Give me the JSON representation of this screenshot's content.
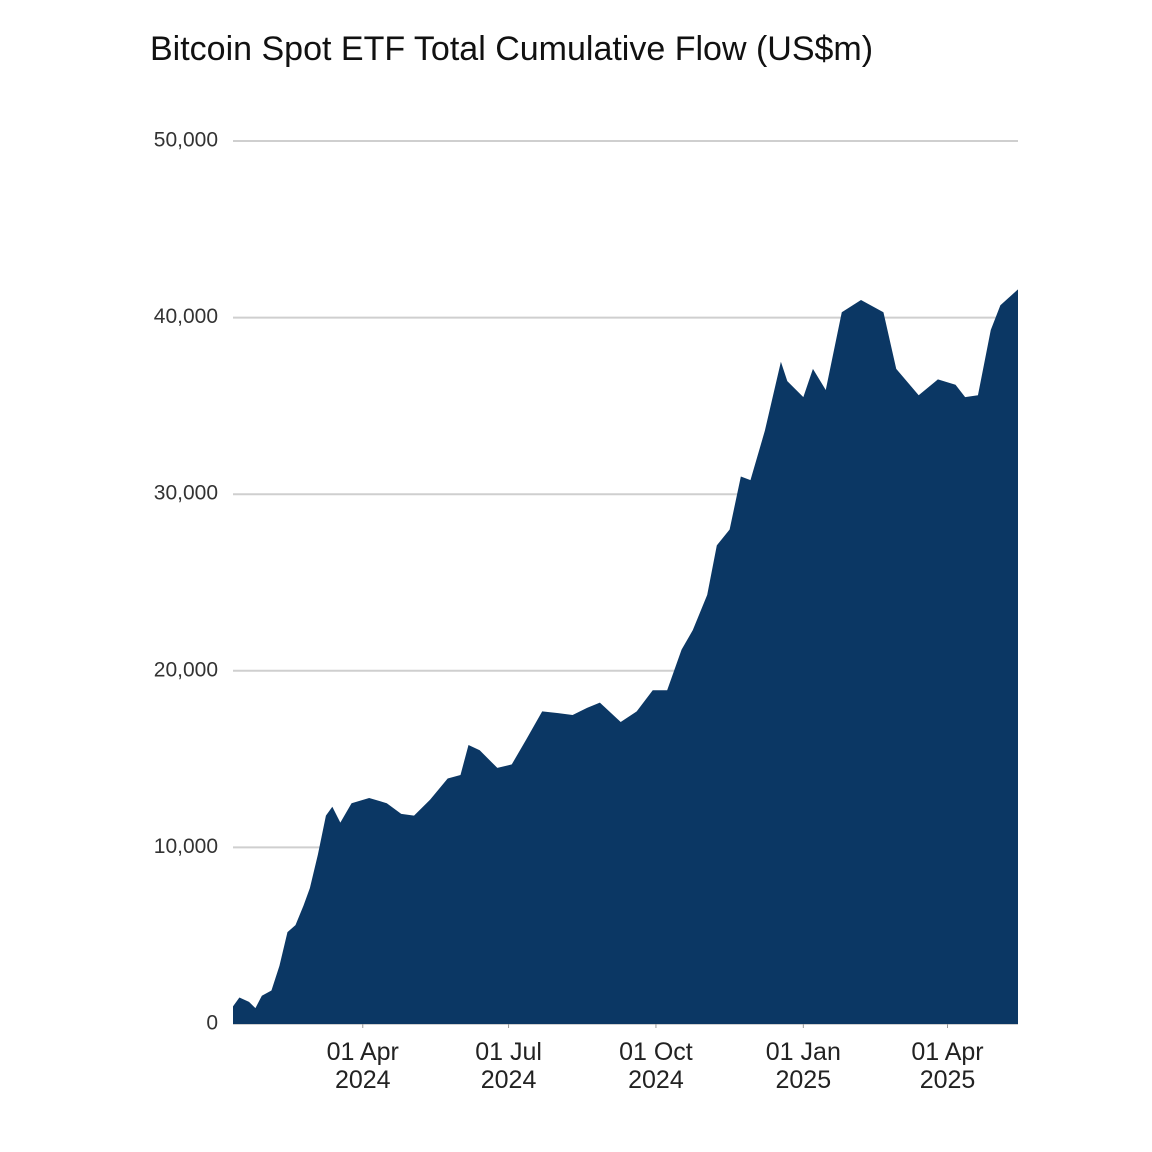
{
  "chart_data": {
    "type": "area",
    "title": "Bitcoin Spot ETF Total Cumulative Flow (US$m)",
    "color": "#0b3764",
    "grid": true,
    "x": [
      "2024-01-11",
      "2024-01-15",
      "2024-01-21",
      "2024-01-25",
      "2024-01-29",
      "2024-02-04",
      "2024-02-09",
      "2024-02-14",
      "2024-02-19",
      "2024-02-24",
      "2024-02-28",
      "2024-03-04",
      "2024-03-09",
      "2024-03-13",
      "2024-03-18",
      "2024-03-25",
      "2024-04-05",
      "2024-04-16",
      "2024-04-25",
      "2024-05-03",
      "2024-05-13",
      "2024-05-24",
      "2024-06-01",
      "2024-06-06",
      "2024-06-13",
      "2024-06-24",
      "2024-07-03",
      "2024-07-12",
      "2024-07-22",
      "2024-08-01",
      "2024-08-10",
      "2024-08-19",
      "2024-08-27",
      "2024-09-09",
      "2024-09-19",
      "2024-09-29",
      "2024-10-08",
      "2024-10-17",
      "2024-10-24",
      "2024-11-02",
      "2024-11-08",
      "2024-11-16",
      "2024-11-23",
      "2024-11-29",
      "2024-12-08",
      "2024-12-18",
      "2024-12-22",
      "2025-01-01",
      "2025-01-07",
      "2025-01-15",
      "2025-01-25",
      "2025-02-06",
      "2025-02-20",
      "2025-02-28",
      "2025-03-14",
      "2025-03-26",
      "2025-04-06",
      "2025-04-12",
      "2025-04-20",
      "2025-04-28",
      "2025-05-04",
      "2025-05-15"
    ],
    "values": [
      1000,
      1500,
      1250,
      900,
      1600,
      1900,
      3300,
      5200,
      5600,
      6700,
      7700,
      9600,
      11800,
      12300,
      11400,
      12500,
      12800,
      12500,
      11900,
      11800,
      12700,
      13900,
      14100,
      15800,
      15500,
      14500,
      14700,
      16100,
      17700,
      17600,
      17500,
      17900,
      18200,
      17100,
      17700,
      18900,
      18900,
      21200,
      22300,
      24300,
      27100,
      28000,
      31000,
      30800,
      33600,
      37500,
      36400,
      35500,
      37100,
      35900,
      40300,
      41000,
      40300,
      37100,
      35600,
      36500,
      36200,
      35500,
      35600,
      39300,
      40700,
      41600
    ],
    "xlim": [
      "2024-01-11",
      "2025-05-15"
    ],
    "xticks": [
      {
        "value": "2024-04-01",
        "label": "01 Apr 2024"
      },
      {
        "value": "2024-07-01",
        "label": "01 Jul 2024"
      },
      {
        "value": "2024-10-01",
        "label": "01 Oct 2024"
      },
      {
        "value": "2025-01-01",
        "label": "01 Jan 2025"
      },
      {
        "value": "2025-04-01",
        "label": "01 Apr 2025"
      }
    ],
    "ylim": [
      0,
      50000
    ],
    "yticks": [
      0,
      {
        "value": 10000,
        "label": "10,000"
      },
      {
        "value": 20000,
        "label": "20,000"
      },
      {
        "value": 30000,
        "label": "30,000"
      },
      {
        "value": 40000,
        "label": "40,000"
      },
      {
        "value": 50000,
        "label": "50,000"
      }
    ]
  }
}
